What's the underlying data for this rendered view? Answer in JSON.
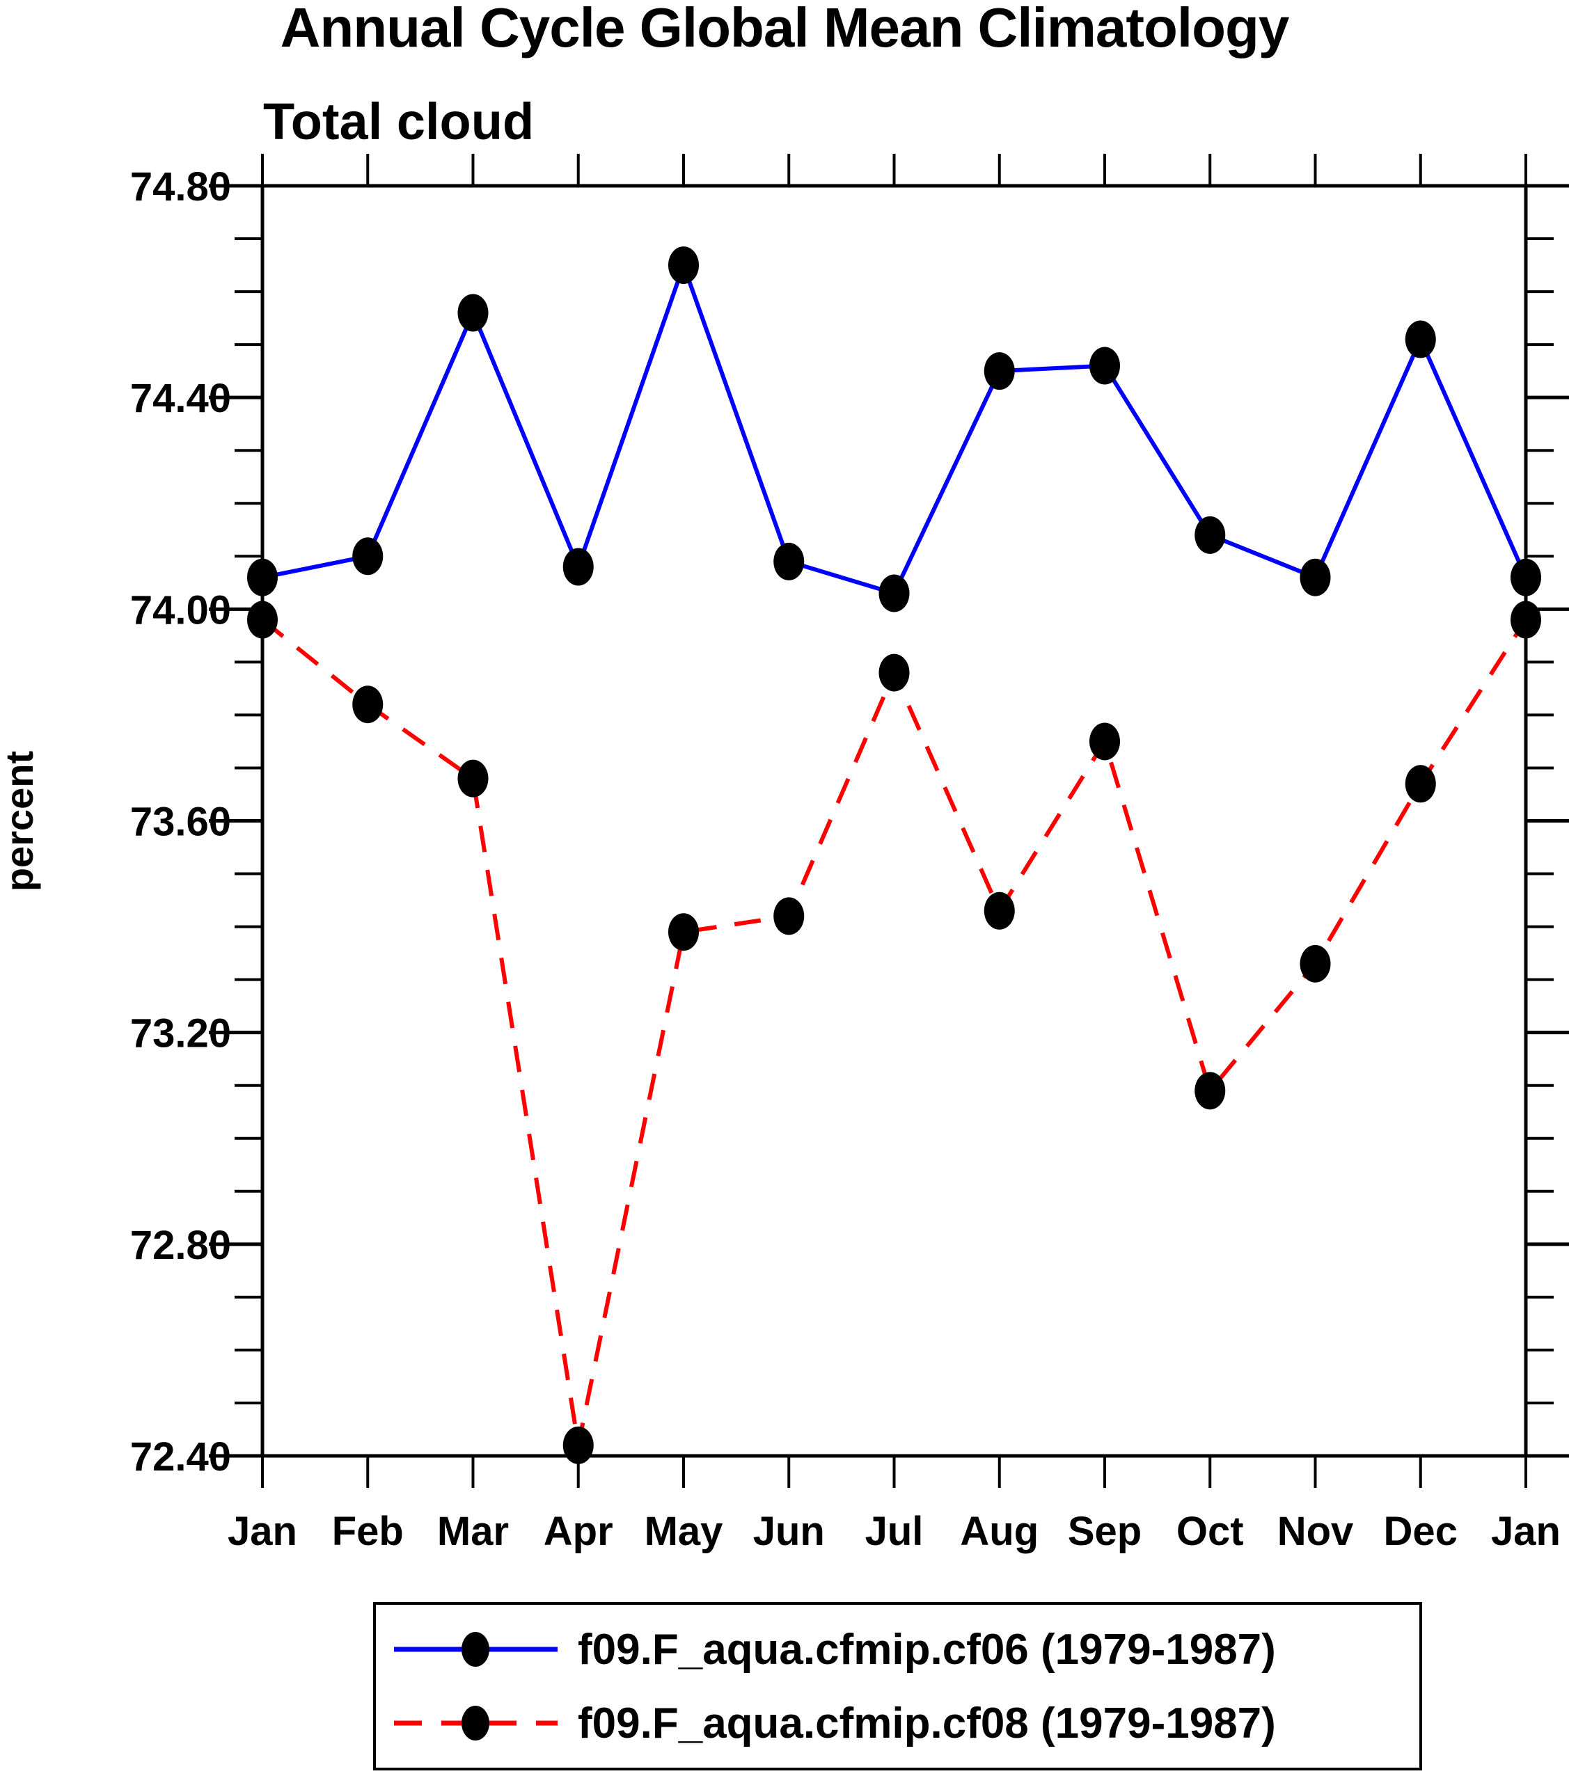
{
  "title": "Annual Cycle Global Mean Climatology",
  "subtitle": "Total cloud",
  "y_axis_label": "percent",
  "colors": {
    "series1": "#0000ff",
    "series2": "#ff0000",
    "marker": "#000000",
    "axis": "#000000",
    "background": "#ffffff"
  },
  "chart_data": {
    "type": "line",
    "title": "Annual Cycle Global Mean Climatology",
    "subtitle": "Total cloud",
    "xlabel": "",
    "ylabel": "percent",
    "x_categories": [
      "Jan",
      "Feb",
      "Mar",
      "Apr",
      "May",
      "Jun",
      "Jul",
      "Aug",
      "Sep",
      "Oct",
      "Nov",
      "Dec",
      "Jan"
    ],
    "ylim": [
      72.4,
      74.8
    ],
    "ytick_labels_major": [
      "74.80",
      "74.40",
      "74.00",
      "73.60",
      "73.20",
      "72.80",
      "72.40"
    ],
    "ytick_major_step": 0.4,
    "ytick_minor_step": 0.1,
    "grid": "off",
    "legend_position": "bottom",
    "series": [
      {
        "name": "f09.F_aqua.cfmip.cf06 (1979-1987)",
        "color": "#0000ff",
        "line_style": "solid",
        "marker": "black-dot",
        "values": [
          74.06,
          74.1,
          74.56,
          74.08,
          74.65,
          74.09,
          74.03,
          74.45,
          74.46,
          74.14,
          74.06,
          74.51,
          74.06
        ]
      },
      {
        "name": "f09.F_aqua.cfmip.cf08 (1979-1987)",
        "color": "#ff0000",
        "line_style": "dashed",
        "marker": "black-dot",
        "values": [
          73.98,
          73.82,
          73.68,
          72.42,
          73.39,
          73.42,
          73.88,
          73.43,
          73.75,
          73.09,
          73.33,
          73.67,
          73.98
        ]
      }
    ]
  }
}
